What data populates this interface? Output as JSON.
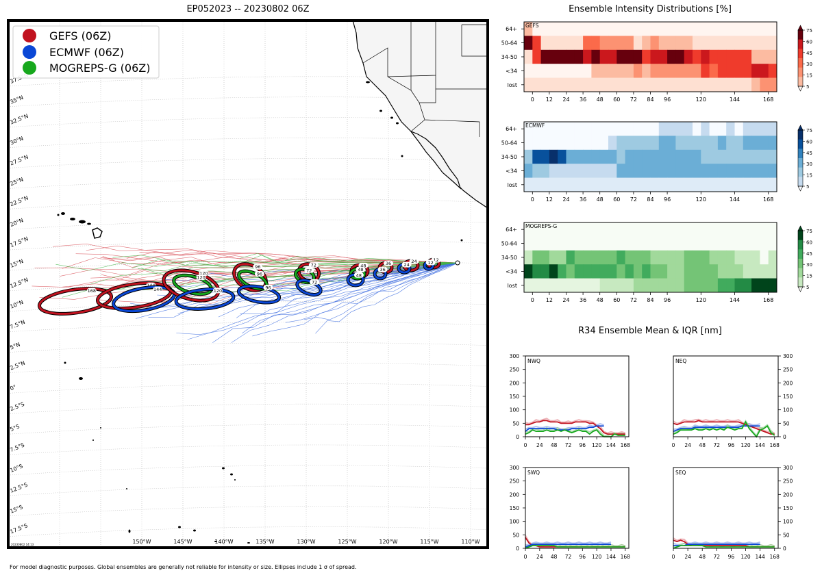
{
  "title": "EP052023 -- 20230802 06Z",
  "footer": "For model diagnostic purposes. Global ensembles are generally not reliable for intensity or size. Ellipses include 1 σ of spread.",
  "stamp": "20230802 14:13",
  "map": {
    "legend": [
      {
        "label": "GEFS (06Z)",
        "color": "#c1121f"
      },
      {
        "label": "ECMWF (06Z)",
        "color": "#0a47d6"
      },
      {
        "label": "MOGREPS-G (06Z)",
        "color": "#17a81d"
      }
    ],
    "lat_labels": [
      "37.5°N",
      "35°N",
      "32.5°N",
      "30°N",
      "27.5°N",
      "25°N",
      "22.5°N",
      "20°N",
      "17.5°N",
      "15°N",
      "12.5°N",
      "10°N",
      "7.5°N",
      "5°N",
      "2.5°N",
      "0°",
      "2.5°S",
      "5°S",
      "7.5°S",
      "10°S",
      "12.5°S",
      "15°S",
      "17.5°S"
    ],
    "lon_labels": [
      "150°W",
      "145°W",
      "140°W",
      "135°W",
      "130°W",
      "125°W",
      "120°W",
      "115°W",
      "110°W"
    ]
  },
  "chart_data": [
    {
      "type": "heatmap",
      "title": "Ensemble Intensity Distributions [%]",
      "rows": [
        "64+",
        "50-64",
        "34-50",
        "<34",
        "lost"
      ],
      "x_ticks": [
        "0",
        "12",
        "24",
        "36",
        "48",
        "60",
        "72",
        "84",
        "96",
        "120",
        "144",
        "168"
      ],
      "x_range": [
        -6,
        174
      ],
      "colorbar_ticks": [
        "75",
        "60",
        "45",
        "30",
        "15",
        "5"
      ],
      "panels": [
        {
          "name": "GEFS",
          "cmap": "reds",
          "values": [
            [
              15,
              0,
              0,
              0,
              0,
              0,
              0,
              0,
              0,
              0,
              0,
              0,
              0,
              0,
              0,
              0,
              0,
              0,
              0,
              0,
              0,
              0,
              0,
              0,
              0,
              0,
              0,
              0,
              0,
              0
            ],
            [
              90,
              55,
              5,
              5,
              5,
              5,
              5,
              45,
              45,
              30,
              30,
              30,
              30,
              5,
              15,
              30,
              15,
              15,
              15,
              15,
              5,
              5,
              5,
              5,
              5,
              5,
              5,
              5,
              5,
              5
            ],
            [
              5,
              60,
              90,
              90,
              90,
              90,
              90,
              75,
              90,
              75,
              75,
              90,
              90,
              90,
              60,
              75,
              75,
              90,
              90,
              75,
              60,
              75,
              60,
              60,
              60,
              60,
              60,
              15,
              15,
              15
            ],
            [
              0,
              0,
              0,
              0,
              0,
              0,
              0,
              0,
              15,
              15,
              15,
              15,
              15,
              30,
              15,
              30,
              30,
              30,
              30,
              30,
              30,
              60,
              45,
              60,
              60,
              60,
              60,
              75,
              75,
              60
            ],
            [
              5,
              5,
              5,
              5,
              5,
              5,
              5,
              5,
              5,
              5,
              5,
              5,
              5,
              5,
              5,
              5,
              5,
              5,
              5,
              5,
              5,
              5,
              5,
              5,
              5,
              5,
              5,
              15,
              30,
              30
            ]
          ]
        },
        {
          "name": "ECMWF",
          "cmap": "blues",
          "values": [
            [
              0,
              0,
              0,
              0,
              0,
              0,
              0,
              0,
              0,
              0,
              0,
              0,
              0,
              0,
              0,
              0,
              15,
              15,
              15,
              15,
              0,
              15,
              0,
              0,
              15,
              0,
              15,
              15,
              15,
              15
            ],
            [
              0,
              0,
              0,
              0,
              0,
              0,
              0,
              0,
              0,
              0,
              15,
              30,
              30,
              30,
              30,
              30,
              45,
              45,
              30,
              30,
              30,
              30,
              30,
              45,
              30,
              30,
              45,
              45,
              45,
              45
            ],
            [
              30,
              75,
              75,
              90,
              75,
              45,
              45,
              45,
              45,
              45,
              45,
              30,
              45,
              45,
              45,
              45,
              45,
              45,
              45,
              45,
              45,
              30,
              30,
              30,
              30,
              30,
              30,
              30,
              30,
              30
            ],
            [
              45,
              30,
              30,
              15,
              15,
              15,
              15,
              15,
              15,
              15,
              15,
              45,
              45,
              45,
              45,
              45,
              45,
              45,
              45,
              45,
              45,
              45,
              45,
              45,
              45,
              45,
              45,
              45,
              45,
              45
            ],
            [
              5,
              5,
              5,
              5,
              5,
              5,
              5,
              5,
              5,
              5,
              5,
              5,
              5,
              5,
              5,
              5,
              5,
              5,
              5,
              5,
              5,
              5,
              5,
              5,
              5,
              5,
              5,
              5,
              5,
              5
            ]
          ]
        },
        {
          "name": "MOGREPS-G",
          "cmap": "greens",
          "values": [
            [
              0,
              0,
              0,
              0,
              0,
              0,
              0,
              0,
              0,
              0,
              0,
              0,
              0,
              0,
              0,
              0,
              0,
              0,
              0,
              0,
              0,
              0,
              0,
              0,
              0,
              0,
              0,
              0,
              0,
              0
            ],
            [
              0,
              0,
              0,
              0,
              0,
              0,
              0,
              0,
              0,
              0,
              0,
              0,
              0,
              0,
              0,
              0,
              0,
              0,
              0,
              0,
              0,
              0,
              0,
              0,
              0,
              0,
              0,
              0,
              0,
              0
            ],
            [
              15,
              45,
              45,
              30,
              30,
              60,
              45,
              45,
              45,
              45,
              45,
              60,
              45,
              45,
              45,
              30,
              30,
              30,
              30,
              45,
              45,
              45,
              30,
              30,
              30,
              15,
              15,
              15,
              0,
              15
            ],
            [
              90,
              75,
              75,
              90,
              60,
              45,
              60,
              60,
              60,
              60,
              60,
              45,
              60,
              45,
              60,
              45,
              45,
              30,
              30,
              45,
              45,
              45,
              45,
              30,
              30,
              30,
              15,
              15,
              15,
              15
            ],
            [
              5,
              5,
              5,
              5,
              5,
              5,
              5,
              5,
              5,
              15,
              15,
              15,
              15,
              30,
              30,
              30,
              30,
              30,
              30,
              45,
              45,
              45,
              45,
              60,
              60,
              75,
              75,
              90,
              90,
              90
            ]
          ]
        }
      ]
    },
    {
      "type": "line",
      "title": "R34 Ensemble Mean & IQR [nm]",
      "x": [
        0,
        6,
        12,
        18,
        24,
        30,
        36,
        42,
        48,
        54,
        60,
        66,
        72,
        78,
        84,
        90,
        96,
        102,
        108,
        114,
        120,
        126,
        132,
        138,
        144,
        150,
        156,
        162,
        168
      ],
      "x_ticks": [
        "0",
        "24",
        "48",
        "72",
        "96",
        "120",
        "144",
        "168"
      ],
      "xlim": [
        0,
        174
      ],
      "ylim": [
        0,
        300
      ],
      "y_ticks": [
        "0",
        "50",
        "100",
        "150",
        "200",
        "250",
        "300"
      ],
      "panels": [
        {
          "name": "NWQ",
          "series": [
            {
              "name": "GEFS",
              "values": [
                45,
                45,
                50,
                55,
                55,
                60,
                60,
                55,
                55,
                55,
                50,
                50,
                50,
                50,
                55,
                55,
                55,
                55,
                50,
                50,
                40,
                30,
                15,
                10,
                10,
                10,
                10,
                10,
                10
              ]
            },
            {
              "name": "ECMWF",
              "values": [
                20,
                30,
                30,
                30,
                30,
                30,
                30,
                30,
                30,
                25,
                25,
                25,
                25,
                30,
                30,
                30,
                30,
                30,
                35,
                35,
                40,
                40,
                40
              ]
            },
            {
              "name": "MOGREPS-G",
              "values": [
                10,
                15,
                25,
                20,
                20,
                20,
                25,
                20,
                20,
                25,
                20,
                25,
                20,
                15,
                20,
                25,
                20,
                20,
                10,
                20,
                25,
                10,
                0,
                0,
                0,
                10,
                5,
                5,
                5
              ]
            }
          ]
        },
        {
          "name": "NEQ",
          "series": [
            {
              "name": "GEFS",
              "values": [
                50,
                45,
                50,
                55,
                55,
                55,
                55,
                60,
                55,
                55,
                55,
                55,
                55,
                55,
                55,
                55,
                55,
                55,
                55,
                50,
                45,
                40,
                35,
                30,
                25,
                20,
                15,
                10,
                10
              ]
            },
            {
              "name": "ECMWF",
              "values": [
                20,
                25,
                30,
                30,
                30,
                30,
                35,
                35,
                35,
                35,
                35,
                35,
                35,
                35,
                35,
                35,
                35,
                35,
                35,
                40,
                40,
                40,
                40,
                40,
                40
              ]
            },
            {
              "name": "MOGREPS-G",
              "values": [
                10,
                15,
                25,
                25,
                25,
                25,
                30,
                25,
                25,
                30,
                25,
                30,
                25,
                30,
                25,
                35,
                30,
                25,
                30,
                30,
                55,
                30,
                15,
                0,
                25,
                30,
                40,
                15,
                5
              ]
            }
          ]
        },
        {
          "name": "SWQ",
          "series": [
            {
              "name": "GEFS",
              "values": [
                40,
                20,
                10,
                10,
                5,
                5,
                5,
                5,
                5,
                5,
                5,
                5,
                5,
                5,
                5,
                5,
                5,
                5,
                5,
                5,
                5,
                5,
                5,
                5,
                5,
                5,
                5,
                5,
                5
              ]
            },
            {
              "name": "ECMWF",
              "values": [
                5,
                10,
                15,
                15,
                15,
                15,
                15,
                15,
                15,
                15,
                15,
                15,
                15,
                15,
                15,
                15,
                15,
                15,
                15,
                15,
                15,
                15,
                15,
                15,
                15
              ]
            },
            {
              "name": "MOGREPS-G",
              "values": [
                0,
                5,
                10,
                10,
                10,
                10,
                10,
                10,
                10,
                5,
                5,
                5,
                5,
                5,
                5,
                5,
                5,
                5,
                5,
                5,
                5,
                5,
                5,
                5,
                5,
                5,
                5,
                5,
                5
              ]
            }
          ]
        },
        {
          "name": "SEQ",
          "series": [
            {
              "name": "GEFS",
              "values": [
                30,
                25,
                30,
                25,
                15,
                10,
                10,
                10,
                10,
                10,
                10,
                10,
                10,
                10,
                10,
                10,
                10,
                10,
                10,
                10,
                10,
                5,
                5,
                5,
                5,
                5,
                5,
                5,
                5
              ]
            },
            {
              "name": "ECMWF",
              "values": [
                10,
                10,
                10,
                10,
                15,
                15,
                15,
                15,
                15,
                15,
                15,
                15,
                15,
                15,
                15,
                15,
                15,
                15,
                15,
                15,
                15,
                15,
                15,
                15,
                15
              ]
            },
            {
              "name": "MOGREPS-G",
              "values": [
                0,
                5,
                10,
                10,
                10,
                10,
                10,
                10,
                10,
                5,
                5,
                5,
                5,
                5,
                5,
                5,
                5,
                5,
                5,
                5,
                5,
                5,
                5,
                5,
                5,
                5,
                5,
                5,
                5
              ]
            }
          ]
        }
      ]
    }
  ]
}
